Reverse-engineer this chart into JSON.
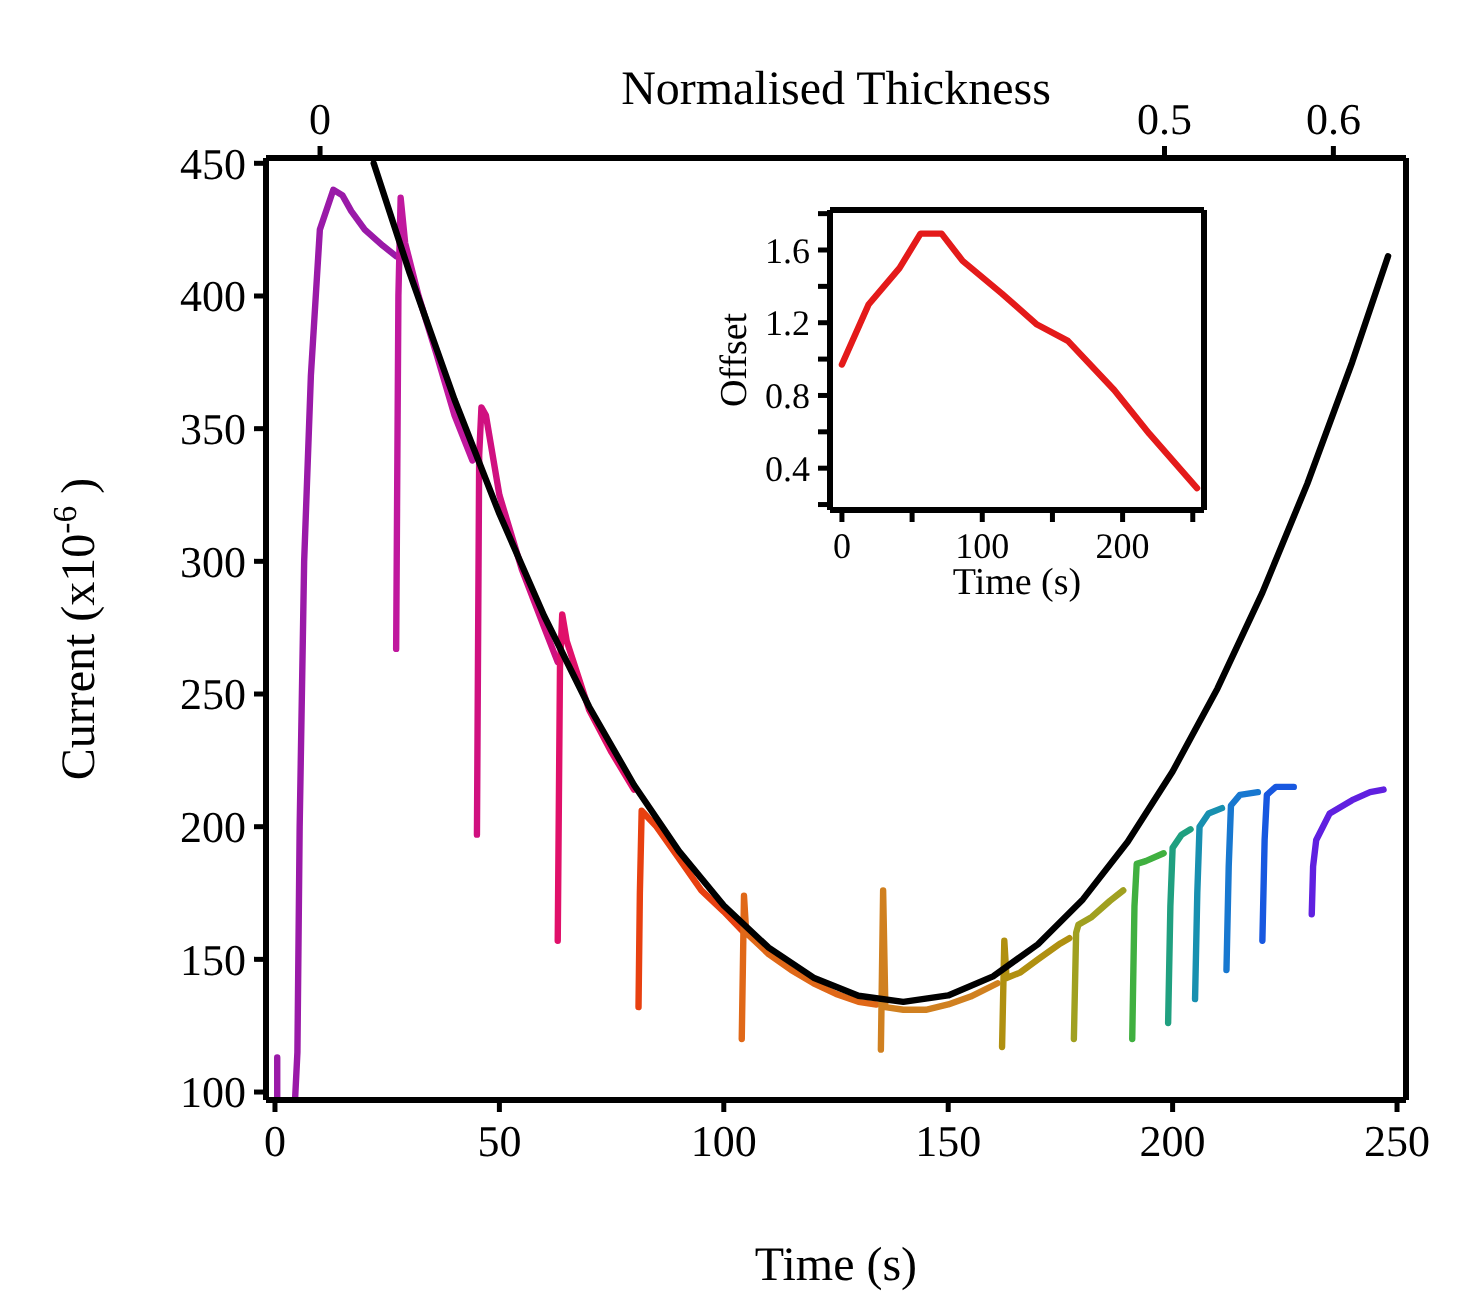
{
  "chart_data": [
    {
      "type": "line",
      "xlabel": "Time (s)",
      "ylabel": "Current (x10$^{-6}$ )",
      "x2label": "Normalised Thickness",
      "xlim": [
        -2,
        252
      ],
      "xticks": [
        0,
        50,
        100,
        150,
        200,
        250
      ],
      "ylim": [
        97,
        452
      ],
      "yticks": [
        100,
        150,
        200,
        250,
        300,
        350,
        400,
        450
      ],
      "x2lim": [
        -0.032,
        0.643
      ],
      "x2ticks": [
        0,
        0.5,
        0.6
      ],
      "series": [
        {
          "color": "#9a1aa8",
          "x": [
            0.5,
            0.5,
            2,
            4.5,
            5,
            5.5,
            6.5,
            8,
            10,
            13,
            15,
            17,
            20,
            24,
            27
          ],
          "values": [
            98,
            113,
            null,
            98,
            115,
            200,
            300,
            370,
            425,
            440,
            438,
            432,
            425,
            419,
            415
          ]
        },
        {
          "color": "#c0189e",
          "x": [
            27,
            27.5,
            28,
            29,
            32,
            36,
            40,
            44
          ],
          "values": [
            267,
            400,
            437,
            420,
            400,
            378,
            355,
            338
          ]
        },
        {
          "color": "#d01080",
          "x": [
            45,
            45.5,
            46,
            47,
            50,
            55,
            60,
            63
          ],
          "values": [
            197,
            340,
            358,
            355,
            325,
            297,
            275,
            262
          ]
        },
        {
          "color": "#e0106a",
          "x": [
            63,
            63.5,
            64,
            65,
            70,
            75,
            80
          ],
          "values": [
            157,
            260,
            280,
            270,
            244,
            228,
            214
          ]
        },
        {
          "color": "#e84010",
          "x": [
            81,
            81.3,
            81.7,
            85,
            90,
            95,
            100,
            104
          ],
          "values": [
            132,
            175,
            206,
            200,
            188,
            176,
            168,
            161
          ]
        },
        {
          "color": "#e06818",
          "x": [
            104,
            104.5,
            105,
            110,
            115,
            120,
            125,
            130,
            134
          ],
          "values": [
            120,
            174,
            160,
            152,
            146,
            141,
            137,
            134,
            133
          ]
        },
        {
          "color": "#d08020",
          "x": [
            135,
            135.5,
            136,
            140,
            145,
            150,
            155,
            161
          ],
          "values": [
            116,
            176,
            132,
            131,
            131,
            133,
            136,
            141
          ]
        },
        {
          "color": "#b09010",
          "x": [
            162,
            162.5,
            163,
            166,
            170,
            175,
            177
          ],
          "values": [
            117,
            157,
            143,
            145,
            150,
            156,
            158
          ]
        },
        {
          "color": "#a0a020",
          "x": [
            178,
            178.5,
            179,
            182,
            186,
            189
          ],
          "values": [
            120,
            160,
            163,
            166,
            172,
            176
          ]
        },
        {
          "color": "#40b040",
          "x": [
            191,
            191.5,
            192,
            194,
            198
          ],
          "values": [
            120,
            170,
            186,
            187,
            190
          ]
        },
        {
          "color": "#20a080",
          "x": [
            199,
            199.5,
            200,
            202,
            204
          ],
          "values": [
            126,
            170,
            192,
            197,
            199
          ]
        },
        {
          "color": "#1890b0",
          "x": [
            205,
            205.5,
            206,
            208,
            211
          ],
          "values": [
            135,
            175,
            200,
            205,
            207
          ]
        },
        {
          "color": "#1878d0",
          "x": [
            212,
            212.5,
            213,
            215,
            219
          ],
          "values": [
            146,
            185,
            208,
            212,
            213
          ]
        },
        {
          "color": "#1858e0",
          "x": [
            220,
            220.5,
            221,
            223,
            227
          ],
          "values": [
            157,
            195,
            212,
            215,
            215
          ]
        },
        {
          "color": "#6020e0",
          "x": [
            231,
            231.3,
            232,
            235,
            240,
            244,
            247
          ],
          "values": [
            167,
            185,
            195,
            205,
            210,
            213,
            214
          ]
        },
        {
          "color": "#000000",
          "x": [
            22,
            30,
            40,
            50,
            60,
            70,
            80,
            90,
            100,
            110,
            120,
            130,
            140,
            150,
            160,
            170,
            180,
            190,
            200,
            210,
            220,
            230,
            240,
            248
          ],
          "values": [
            450,
            408.7,
            361,
            317.9,
            279.3,
            245.2,
            215.7,
            190.8,
            170.3,
            154.4,
            143.1,
            136.3,
            134,
            136.4,
            143.6,
            155.7,
            172.6,
            194.3,
            220.8,
            252.1,
            288.2,
            329.2,
            375,
            415
          ]
        }
      ]
    },
    {
      "type": "line",
      "xlabel": "Time (s)",
      "ylabel": "Offset",
      "xlim": [
        -8.5,
        258
      ],
      "xticks": [
        0,
        {
          "value": 50,
          "label": null
        },
        100,
        {
          "value": 150,
          "label": null
        },
        200,
        {
          "value": 250,
          "label": null
        }
      ],
      "ylim": [
        0.17,
        1.82
      ],
      "yticks": [
        {
          "value": 0.2,
          "label": null
        },
        0.4,
        {
          "value": 0.6,
          "label": null
        },
        0.8,
        {
          "value": 1.0,
          "label": null
        },
        1.2,
        {
          "value": 1.4,
          "label": null
        },
        1.6,
        {
          "value": 1.8,
          "label": null
        }
      ],
      "series": [
        {
          "color": "#e41a1a",
          "x": [
            0,
            19,
            41,
            56,
            71,
            86,
            114,
            139,
            161,
            194,
            219,
            253
          ],
          "values": [
            0.97,
            1.3,
            1.5,
            1.69,
            1.69,
            1.54,
            1.36,
            1.19,
            1.1,
            0.83,
            0.59,
            0.29
          ]
        }
      ]
    }
  ]
}
